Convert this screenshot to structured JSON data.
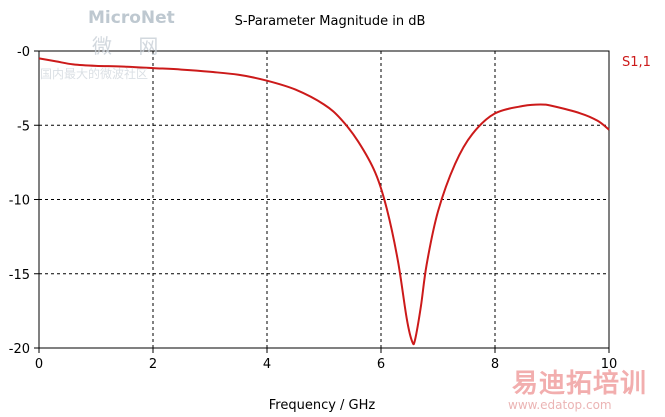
{
  "chart_data": {
    "type": "line",
    "title": "S-Parameter Magnitude in dB",
    "xlabel": "Frequency / GHz",
    "ylabel": "",
    "xlim": [
      0,
      10
    ],
    "ylim": [
      -20,
      0
    ],
    "xticks": [
      0,
      2,
      4,
      6,
      8,
      10
    ],
    "yticks": [
      0,
      -5,
      -10,
      -15,
      -20
    ],
    "xtick_labels": [
      "0",
      "2",
      "4",
      "6",
      "8",
      "10"
    ],
    "ytick_labels": [
      "-0",
      "-5",
      "-10",
      "-15",
      "-20"
    ],
    "grid": "dashed",
    "legend_placement": "right of plot, top",
    "series": [
      {
        "name": "S1,1",
        "color": "#cc1a1a",
        "x": [
          0,
          0.3,
          0.6,
          1,
          1.5,
          2,
          2.5,
          3,
          3.5,
          4,
          4.5,
          5,
          5.3,
          5.6,
          5.9,
          6.1,
          6.3,
          6.45,
          6.55,
          6.6,
          6.7,
          6.8,
          7,
          7.3,
          7.6,
          8,
          8.5,
          8.8,
          9,
          9.5,
          9.8,
          10
        ],
        "y": [
          -0.5,
          -0.7,
          -0.9,
          -1.0,
          -1.05,
          -1.15,
          -1.25,
          -1.4,
          -1.6,
          -2.0,
          -2.6,
          -3.6,
          -4.6,
          -6.1,
          -8.2,
          -10.6,
          -14.2,
          -18.0,
          -19.6,
          -19.4,
          -17.2,
          -14.4,
          -10.8,
          -7.6,
          -5.6,
          -4.2,
          -3.7,
          -3.6,
          -3.7,
          -4.2,
          -4.7,
          -5.3
        ]
      }
    ]
  },
  "watermarks": {
    "logo_text": "MicroNet",
    "logo_cn": "微 网",
    "logo_sub": "国内最大的微波社区",
    "bottom_cn": "易迪拓培训",
    "bottom_url": "www.edatop.com"
  }
}
